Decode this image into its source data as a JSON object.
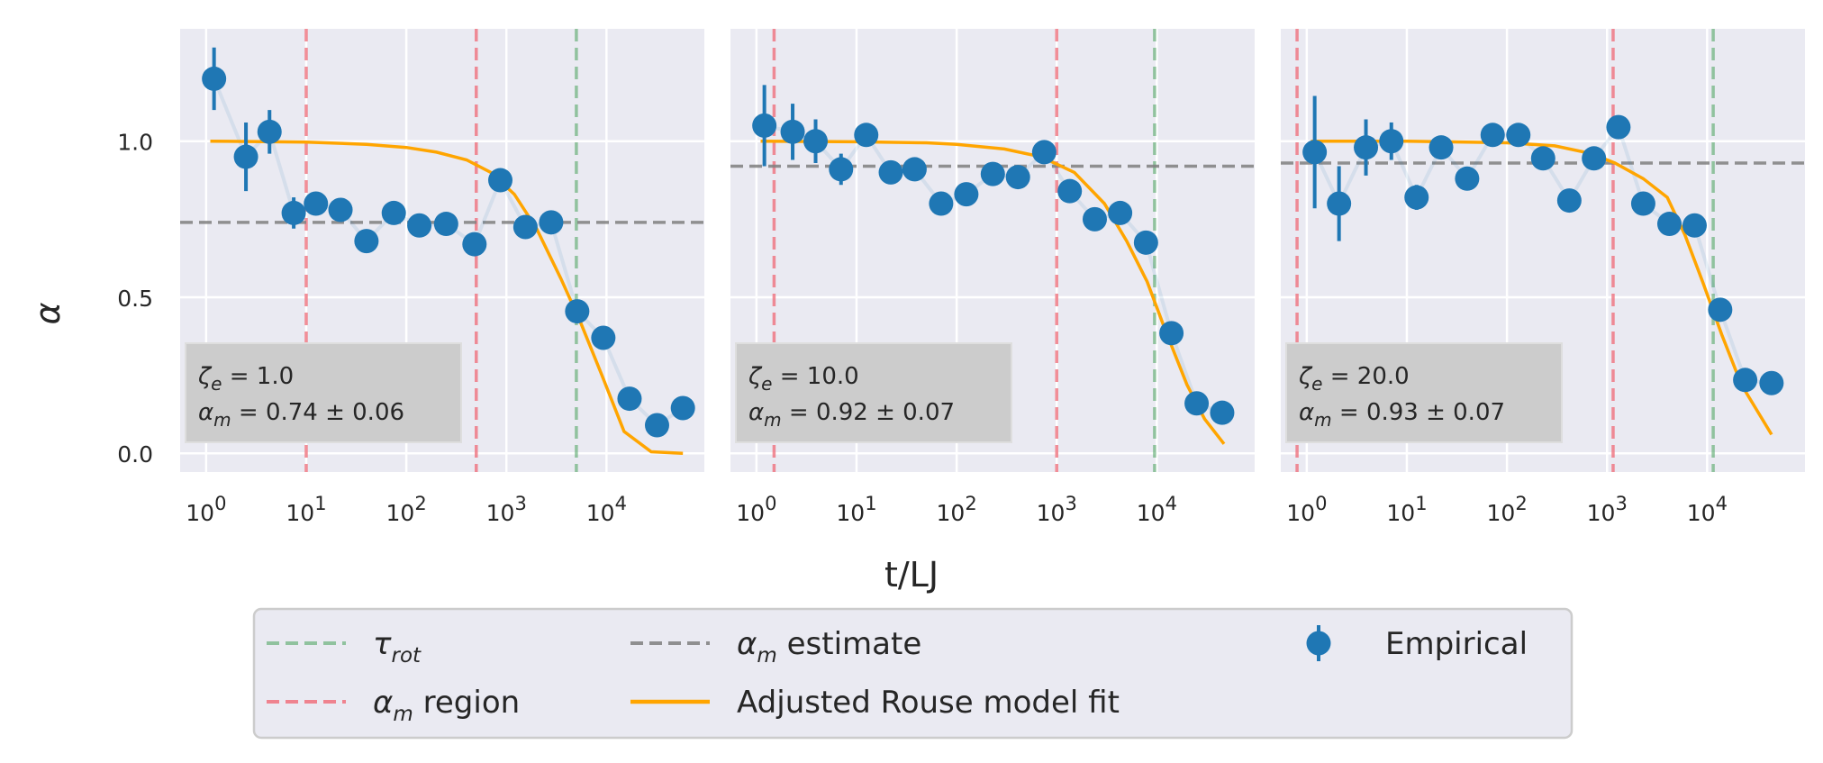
{
  "chart_data": {
    "type": "scatter",
    "xlabel": "t/LJ",
    "ylabel": "α",
    "xscale": "log",
    "xlim": [
      0.55,
      95000
    ],
    "ylim": [
      -0.06,
      1.36
    ],
    "yticks": [
      {
        "value": 0.0,
        "label": "0.0"
      },
      {
        "value": 0.5,
        "label": "0.5"
      },
      {
        "value": 1.0,
        "label": "1.0"
      }
    ],
    "xticks": [
      {
        "value": 1,
        "base": "10",
        "exp": "0"
      },
      {
        "value": 10,
        "base": "10",
        "exp": "1"
      },
      {
        "value": 100,
        "base": "10",
        "exp": "2"
      },
      {
        "value": 1000,
        "base": "10",
        "exp": "3"
      },
      {
        "value": 10000,
        "base": "10",
        "exp": "4"
      }
    ],
    "grid": true,
    "legend": {
      "placement": "bottom-center",
      "entries": [
        {
          "key": "tau_rot",
          "label": "τ",
          "sub": "rot",
          "color": "#55a868",
          "style": "dashed"
        },
        {
          "key": "alpha_region",
          "label": "α",
          "sub": "m",
          "suffix": " region",
          "color": "#f0727e",
          "style": "dashed"
        },
        {
          "key": "alpha_estimate",
          "label": "α",
          "sub": "m",
          "suffix": " estimate",
          "color": "#808080",
          "style": "dashed"
        },
        {
          "key": "rouse_fit",
          "label": "Adjusted Rouse model fit",
          "sub": "",
          "suffix": "",
          "color": "#ffa500",
          "style": "solid"
        },
        {
          "key": "empirical",
          "label": "Empirical",
          "sub": "",
          "suffix": "",
          "color": "#1f77b4",
          "style": "marker"
        }
      ]
    },
    "panels": [
      {
        "zeta_label": "ζ",
        "zeta_sub": "e",
        "zeta_value": "= 1.0",
        "alpha_label": "α",
        "alpha_sub": "m",
        "alpha_value": "= 0.74 ± 0.06",
        "alpha_m": 0.74,
        "tau_rot": 5000,
        "region": [
          10,
          500
        ],
        "empirical": [
          {
            "x": 1.2,
            "y": 1.2,
            "err": 0.1
          },
          {
            "x": 2.5,
            "y": 0.95,
            "err": 0.11
          },
          {
            "x": 4.3,
            "y": 1.03,
            "err": 0.07
          },
          {
            "x": 7.5,
            "y": 0.77,
            "err": 0.05
          },
          {
            "x": 12.5,
            "y": 0.8,
            "err": 0.03
          },
          {
            "x": 22,
            "y": 0.78,
            "err": 0.02
          },
          {
            "x": 40,
            "y": 0.68,
            "err": 0.02
          },
          {
            "x": 75,
            "y": 0.77,
            "err": 0.02
          },
          {
            "x": 135,
            "y": 0.73,
            "err": 0.02
          },
          {
            "x": 250,
            "y": 0.735,
            "err": 0.02
          },
          {
            "x": 480,
            "y": 0.67,
            "err": 0.02
          },
          {
            "x": 870,
            "y": 0.875,
            "err": 0.02
          },
          {
            "x": 1550,
            "y": 0.725,
            "err": 0.02
          },
          {
            "x": 2800,
            "y": 0.74,
            "err": 0.02
          },
          {
            "x": 5100,
            "y": 0.455,
            "err": 0.02
          },
          {
            "x": 9300,
            "y": 0.37,
            "err": 0.02
          },
          {
            "x": 17000,
            "y": 0.175,
            "err": 0.02
          },
          {
            "x": 32000,
            "y": 0.09,
            "err": 0.02
          },
          {
            "x": 58000,
            "y": 0.145,
            "err": 0.02
          }
        ],
        "fit": [
          {
            "x": 1.1,
            "y": 1.0
          },
          {
            "x": 10,
            "y": 0.997
          },
          {
            "x": 40,
            "y": 0.99
          },
          {
            "x": 100,
            "y": 0.98
          },
          {
            "x": 200,
            "y": 0.965
          },
          {
            "x": 400,
            "y": 0.94
          },
          {
            "x": 700,
            "y": 0.9
          },
          {
            "x": 1200,
            "y": 0.83
          },
          {
            "x": 2000,
            "y": 0.72
          },
          {
            "x": 3500,
            "y": 0.56
          },
          {
            "x": 5500,
            "y": 0.42
          },
          {
            "x": 9000,
            "y": 0.25
          },
          {
            "x": 15000,
            "y": 0.07
          },
          {
            "x": 28000,
            "y": 0.005
          },
          {
            "x": 58000,
            "y": 0.0
          }
        ]
      },
      {
        "zeta_label": "ζ",
        "zeta_sub": "e",
        "zeta_value": "= 10.0",
        "alpha_label": "α",
        "alpha_sub": "m",
        "alpha_value": "= 0.92 ± 0.07",
        "alpha_m": 0.92,
        "tau_rot": 9500,
        "region": [
          1.5,
          1000
        ],
        "empirical": [
          {
            "x": 1.2,
            "y": 1.05,
            "err": 0.13
          },
          {
            "x": 2.3,
            "y": 1.03,
            "err": 0.09
          },
          {
            "x": 3.9,
            "y": 1.0,
            "err": 0.07
          },
          {
            "x": 7,
            "y": 0.91,
            "err": 0.05
          },
          {
            "x": 12.5,
            "y": 1.02,
            "err": 0.02
          },
          {
            "x": 22,
            "y": 0.9,
            "err": 0.02
          },
          {
            "x": 38,
            "y": 0.91,
            "err": 0.02
          },
          {
            "x": 70,
            "y": 0.8,
            "err": 0.02
          },
          {
            "x": 125,
            "y": 0.83,
            "err": 0.02
          },
          {
            "x": 230,
            "y": 0.895,
            "err": 0.02
          },
          {
            "x": 410,
            "y": 0.885,
            "err": 0.02
          },
          {
            "x": 750,
            "y": 0.965,
            "err": 0.02
          },
          {
            "x": 1350,
            "y": 0.84,
            "err": 0.02
          },
          {
            "x": 2400,
            "y": 0.75,
            "err": 0.02
          },
          {
            "x": 4300,
            "y": 0.77,
            "err": 0.02
          },
          {
            "x": 7800,
            "y": 0.675,
            "err": 0.02
          },
          {
            "x": 14000,
            "y": 0.385,
            "err": 0.02
          },
          {
            "x": 25000,
            "y": 0.16,
            "err": 0.02
          },
          {
            "x": 45000,
            "y": 0.13,
            "err": 0.02
          }
        ],
        "fit": [
          {
            "x": 1.1,
            "y": 1.0
          },
          {
            "x": 10,
            "y": 0.998
          },
          {
            "x": 50,
            "y": 0.995
          },
          {
            "x": 100,
            "y": 0.99
          },
          {
            "x": 300,
            "y": 0.975
          },
          {
            "x": 700,
            "y": 0.95
          },
          {
            "x": 1500,
            "y": 0.9
          },
          {
            "x": 3000,
            "y": 0.8
          },
          {
            "x": 5000,
            "y": 0.68
          },
          {
            "x": 8000,
            "y": 0.55
          },
          {
            "x": 12000,
            "y": 0.4
          },
          {
            "x": 20000,
            "y": 0.22
          },
          {
            "x": 30000,
            "y": 0.11
          },
          {
            "x": 47000,
            "y": 0.03
          }
        ]
      },
      {
        "zeta_label": "ζ",
        "zeta_sub": "e",
        "zeta_value": "= 20.0",
        "alpha_label": "α",
        "alpha_sub": "m",
        "alpha_value": "= 0.93 ± 0.07",
        "alpha_m": 0.93,
        "tau_rot": 11500,
        "region": [
          0.8,
          1150
        ],
        "empirical": [
          {
            "x": 1.2,
            "y": 0.965,
            "err": 0.18
          },
          {
            "x": 2.1,
            "y": 0.8,
            "err": 0.12
          },
          {
            "x": 3.9,
            "y": 0.98,
            "err": 0.09
          },
          {
            "x": 7,
            "y": 1.0,
            "err": 0.06
          },
          {
            "x": 12.5,
            "y": 0.82,
            "err": 0.04
          },
          {
            "x": 22,
            "y": 0.98,
            "err": 0.02
          },
          {
            "x": 40,
            "y": 0.88,
            "err": 0.02
          },
          {
            "x": 72,
            "y": 1.02,
            "err": 0.02
          },
          {
            "x": 130,
            "y": 1.02,
            "err": 0.02
          },
          {
            "x": 230,
            "y": 0.945,
            "err": 0.02
          },
          {
            "x": 420,
            "y": 0.81,
            "err": 0.02
          },
          {
            "x": 740,
            "y": 0.945,
            "err": 0.02
          },
          {
            "x": 1300,
            "y": 1.045,
            "err": 0.02
          },
          {
            "x": 2300,
            "y": 0.8,
            "err": 0.02
          },
          {
            "x": 4200,
            "y": 0.735,
            "err": 0.02
          },
          {
            "x": 7500,
            "y": 0.73,
            "err": 0.02
          },
          {
            "x": 13500,
            "y": 0.46,
            "err": 0.02
          },
          {
            "x": 24000,
            "y": 0.235,
            "err": 0.02
          },
          {
            "x": 44000,
            "y": 0.225,
            "err": 0.02
          }
        ],
        "fit": [
          {
            "x": 1.1,
            "y": 1.0
          },
          {
            "x": 10,
            "y": 1.0
          },
          {
            "x": 100,
            "y": 0.995
          },
          {
            "x": 300,
            "y": 0.985
          },
          {
            "x": 700,
            "y": 0.96
          },
          {
            "x": 1200,
            "y": 0.93
          },
          {
            "x": 2300,
            "y": 0.88
          },
          {
            "x": 4000,
            "y": 0.82
          },
          {
            "x": 6000,
            "y": 0.7
          },
          {
            "x": 9000,
            "y": 0.55
          },
          {
            "x": 14000,
            "y": 0.38
          },
          {
            "x": 22000,
            "y": 0.22
          },
          {
            "x": 44000,
            "y": 0.06
          }
        ]
      }
    ]
  }
}
